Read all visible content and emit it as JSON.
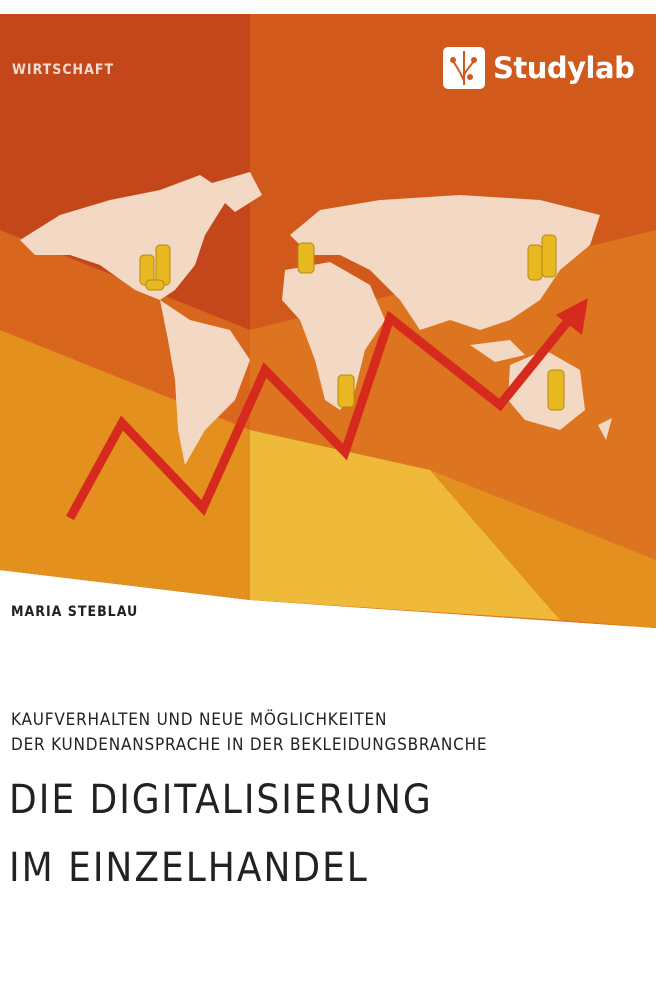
{
  "cover": {
    "series": "WIRTSCHAFT",
    "publisher": "Studylab",
    "author": "MARIA STEBLAU",
    "subtitle_line1": "KAUFVERHALTEN UND NEUE MÖGLICHKEITEN",
    "subtitle_line2": "DER KUNDENANSPRACHE IN DER BEKLEIDUNGSBRANCHE",
    "title_line1": "DIE DIGITALISIERUNG",
    "title_line2": "IM EINZELHANDEL"
  },
  "colors": {
    "dark_orange": "#c4471c",
    "orange": "#d2591c",
    "amber": "#e3901f",
    "yellow": "#efb93a",
    "map": "#f3d9c4",
    "arrow": "#d62a1e"
  },
  "icons": [
    "world-map",
    "gold-coins",
    "rising-arrow",
    "studylab-logo"
  ]
}
